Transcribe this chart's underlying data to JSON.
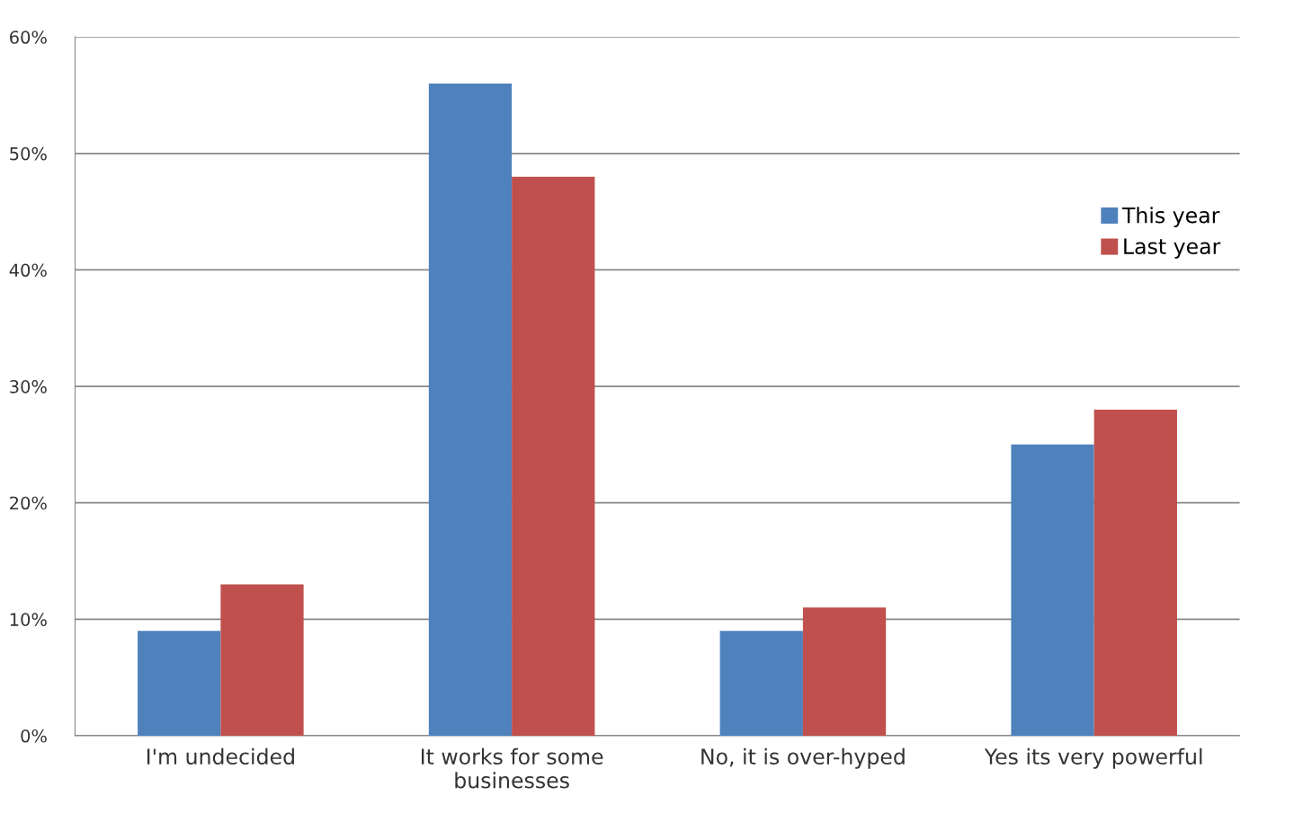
{
  "chart_data": {
    "type": "bar",
    "categories": [
      "I'm undecided",
      "It works for some\nbusinesses",
      "No, it is over-hyped",
      "Yes its very powerful"
    ],
    "series": [
      {
        "name": "This year",
        "color": "#4f81bd",
        "values": [
          9,
          56,
          9,
          25
        ]
      },
      {
        "name": "Last year",
        "color": "#c0504d",
        "values": [
          13,
          48,
          11,
          28
        ]
      }
    ],
    "ylim": [
      0,
      60
    ],
    "yticks": [
      {
        "value": 0,
        "label": "0%"
      },
      {
        "value": 10,
        "label": "10%"
      },
      {
        "value": 20,
        "label": "20%"
      },
      {
        "value": 30,
        "label": "30%"
      },
      {
        "value": 40,
        "label": "40%"
      },
      {
        "value": 50,
        "label": "50%"
      },
      {
        "value": 60,
        "label": "60%"
      }
    ],
    "grid": "y",
    "legend": "right"
  }
}
